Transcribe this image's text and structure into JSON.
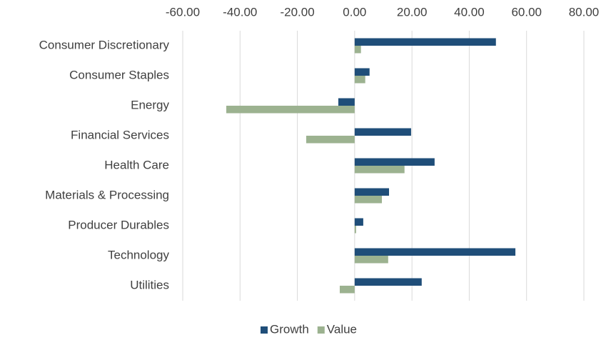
{
  "chart_data": {
    "type": "bar",
    "orientation": "horizontal",
    "categories": [
      "Consumer Discretionary",
      "Consumer Staples",
      "Energy",
      "Financial Services",
      "Health Care",
      "Materials & Processing",
      "Producer Durables",
      "Technology",
      "Utilities"
    ],
    "series": [
      {
        "name": "Growth",
        "color": "#1f4e79",
        "values": [
          49.3,
          5.2,
          -5.7,
          19.7,
          27.9,
          12.0,
          3.0,
          56.1,
          23.4
        ]
      },
      {
        "name": "Value",
        "color": "#9cb290",
        "values": [
          2.2,
          3.7,
          -44.8,
          -16.9,
          17.4,
          9.5,
          0.5,
          11.7,
          -5.2
        ]
      }
    ],
    "xlim": [
      -60,
      80
    ],
    "xticks": [
      {
        "value": -60,
        "label": "-60.00"
      },
      {
        "value": -40,
        "label": "-40.00"
      },
      {
        "value": -20,
        "label": "-20.00"
      },
      {
        "value": 0,
        "label": "0.00"
      },
      {
        "value": 20,
        "label": "20.00"
      },
      {
        "value": 40,
        "label": "40.00"
      },
      {
        "value": 60,
        "label": "60.00"
      },
      {
        "value": 80,
        "label": "80.00"
      }
    ],
    "grid": true,
    "legend": "bottom"
  }
}
